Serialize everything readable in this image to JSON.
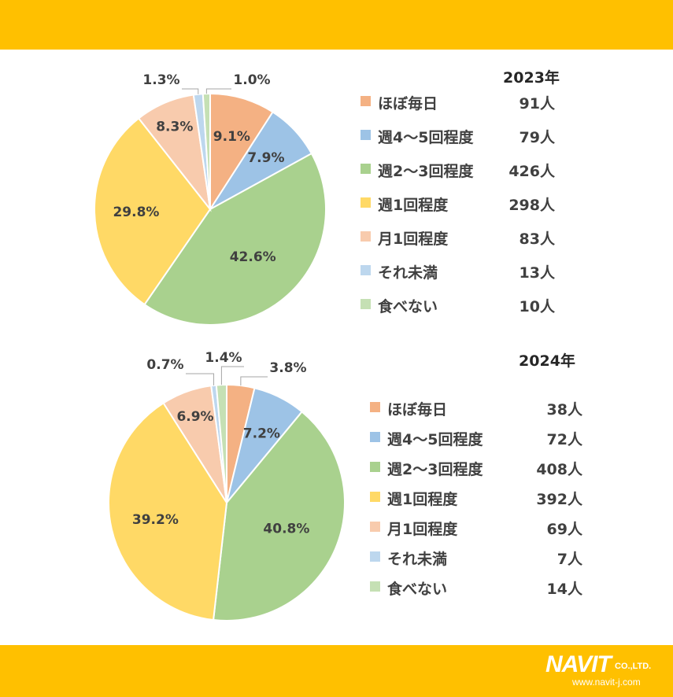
{
  "colors": {
    "band": "#FFC000",
    "background": "#FFFFFF",
    "text": "#404040",
    "line": "#A6A6A6"
  },
  "category_colors": [
    "#F4B183",
    "#9DC3E6",
    "#A9D18E",
    "#FFD966",
    "#F8CBAD",
    "#BDD7EE",
    "#C5E0B4"
  ],
  "chart_data": [
    {
      "type": "pie",
      "title": "2023年",
      "categories": [
        "ほぼ毎日",
        "週4～5回程度",
        "週2～3回程度",
        "週1回程度",
        "月1回程度",
        "それ未満",
        "食べない"
      ],
      "values": [
        9.1,
        7.9,
        42.6,
        29.8,
        8.3,
        1.3,
        1.0
      ],
      "value_labels": [
        "9.1%",
        "7.9%",
        "42.6%",
        "29.8%",
        "8.3%",
        "1.3%",
        "1.0%"
      ],
      "counts": [
        "91人",
        "79人",
        "426人",
        "298人",
        "83人",
        "13人",
        "10人"
      ],
      "legend_position": "right"
    },
    {
      "type": "pie",
      "title": "2024年",
      "categories": [
        "ほぼ毎日",
        "週4～5回程度",
        "週2～3回程度",
        "週1回程度",
        "月1回程度",
        "それ未満",
        "食べない"
      ],
      "values": [
        3.8,
        7.2,
        40.8,
        39.2,
        6.9,
        0.7,
        1.4
      ],
      "value_labels": [
        "3.8%",
        "7.2%",
        "40.8%",
        "39.2%",
        "6.9%",
        "0.7%",
        "1.4%"
      ],
      "counts": [
        "38人",
        "72人",
        "408人",
        "392人",
        "69人",
        "7人",
        "14人"
      ],
      "legend_position": "right"
    }
  ],
  "logo": {
    "name": "NAVIT",
    "suffix": "CO.,LTD.",
    "url": "www.navit-j.com"
  }
}
